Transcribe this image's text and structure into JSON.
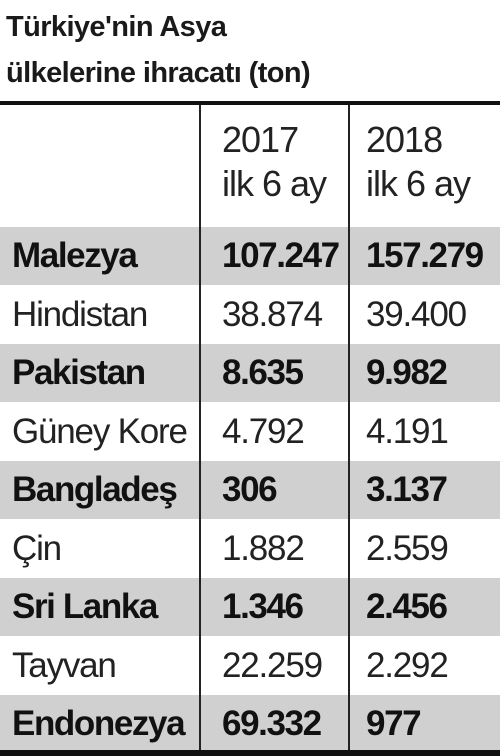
{
  "title_line1": "Türkiye'nin Asya",
  "title_line2": "ülkelerine ihracatı (ton)",
  "columns": [
    {
      "year": "2017",
      "period": "ilk 6 ay"
    },
    {
      "year": "2018",
      "period": "ilk 6 ay"
    }
  ],
  "rows": [
    {
      "country": "Malezya",
      "v2017": "107.247",
      "v2018": "157.279",
      "highlight": true
    },
    {
      "country": "Hindistan",
      "v2017": "38.874",
      "v2018": "39.400",
      "highlight": false
    },
    {
      "country": "Pakistan",
      "v2017": "8.635",
      "v2018": "9.982",
      "highlight": true
    },
    {
      "country": "Güney Kore",
      "v2017": "4.792",
      "v2018": "4.191",
      "highlight": false
    },
    {
      "country": "Bangladeş",
      "v2017": "306",
      "v2018": "3.137",
      "highlight": true
    },
    {
      "country": "Çin",
      "v2017": "1.882",
      "v2018": "2.559",
      "highlight": false
    },
    {
      "country": "Sri Lanka",
      "v2017": "1.346",
      "v2018": "2.456",
      "highlight": true
    },
    {
      "country": "Tayvan",
      "v2017": "22.259",
      "v2018": "2.292",
      "highlight": false
    },
    {
      "country": "Endonezya",
      "v2017": "69.332",
      "v2018": "977",
      "highlight": true
    }
  ],
  "colors": {
    "band": "#d0d0d0",
    "text": "#1a1a1a",
    "rule": "#111111"
  },
  "chart_data": {
    "type": "table",
    "title": "Türkiye'nin Asya ülkelerine ihracatı (ton)",
    "columns": [
      "2017 ilk 6 ay",
      "2018 ilk 6 ay"
    ],
    "categories": [
      "Malezya",
      "Hindistan",
      "Pakistan",
      "Güney Kore",
      "Bangladeş",
      "Çin",
      "Sri Lanka",
      "Tayvan",
      "Endonezya"
    ],
    "series": [
      {
        "name": "2017 ilk 6 ay",
        "values": [
          107247,
          38874,
          8635,
          4792,
          306,
          1882,
          1346,
          22259,
          69332
        ]
      },
      {
        "name": "2018 ilk 6 ay",
        "values": [
          157279,
          39400,
          9982,
          4191,
          3137,
          2559,
          2456,
          2292,
          977
        ]
      }
    ]
  }
}
